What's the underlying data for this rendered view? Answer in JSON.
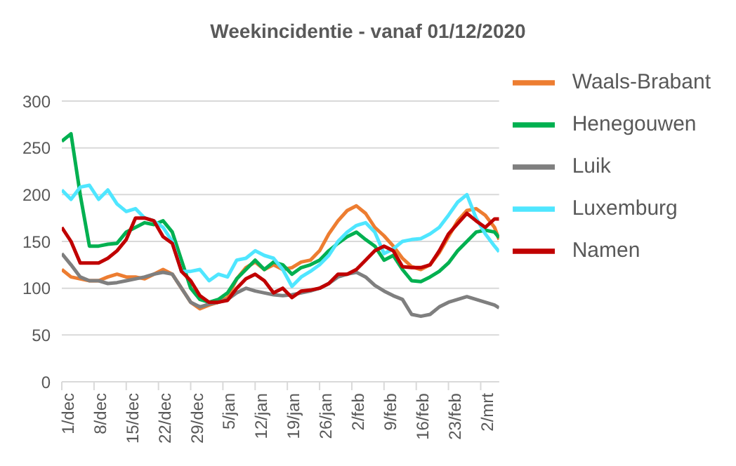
{
  "chart_data": {
    "type": "line",
    "title": "Weekincidentie - vanaf 01/12/2020",
    "x": [
      "2020-12-01",
      "2020-12-03",
      "2020-12-05",
      "2020-12-07",
      "2020-12-09",
      "2020-12-11",
      "2020-12-13",
      "2020-12-15",
      "2020-12-17",
      "2020-12-19",
      "2020-12-21",
      "2020-12-23",
      "2020-12-25",
      "2020-12-27",
      "2020-12-29",
      "2020-12-31",
      "2021-01-02",
      "2021-01-04",
      "2021-01-06",
      "2021-01-08",
      "2021-01-10",
      "2021-01-12",
      "2021-01-14",
      "2021-01-16",
      "2021-01-18",
      "2021-01-20",
      "2021-01-22",
      "2021-01-24",
      "2021-01-26",
      "2021-01-28",
      "2021-01-30",
      "2021-02-01",
      "2021-02-03",
      "2021-02-05",
      "2021-02-07",
      "2021-02-09",
      "2021-02-11",
      "2021-02-13",
      "2021-02-15",
      "2021-02-17",
      "2021-02-19",
      "2021-02-21",
      "2021-02-23",
      "2021-02-25",
      "2021-02-27",
      "2021-03-01",
      "2021-03-03",
      "2021-03-05",
      "2021-03-06"
    ],
    "series": [
      {
        "name": "Waals-Brabant",
        "color": "#ed7d31",
        "values": [
          120,
          112,
          110,
          108,
          108,
          112,
          115,
          112,
          112,
          110,
          115,
          120,
          115,
          100,
          85,
          78,
          82,
          85,
          90,
          110,
          122,
          128,
          120,
          125,
          120,
          122,
          128,
          130,
          140,
          158,
          172,
          183,
          188,
          180,
          165,
          156,
          145,
          132,
          123,
          120,
          125,
          138,
          155,
          172,
          183,
          185,
          178,
          165,
          152
        ]
      },
      {
        "name": "Henegouwen",
        "color": "#00b050",
        "values": [
          257,
          265,
          200,
          145,
          145,
          147,
          148,
          160,
          165,
          170,
          168,
          172,
          160,
          130,
          100,
          88,
          85,
          88,
          95,
          110,
          120,
          130,
          120,
          128,
          125,
          115,
          122,
          125,
          130,
          140,
          148,
          155,
          160,
          152,
          145,
          130,
          135,
          120,
          108,
          107,
          112,
          118,
          127,
          140,
          150,
          160,
          162,
          160,
          154
        ]
      },
      {
        "name": "Luik",
        "color": "#7f7f7f",
        "values": [
          137,
          125,
          112,
          108,
          108,
          105,
          106,
          108,
          110,
          112,
          115,
          117,
          115,
          100,
          85,
          80,
          83,
          85,
          88,
          95,
          100,
          97,
          95,
          93,
          92,
          93,
          95,
          97,
          100,
          105,
          112,
          115,
          117,
          112,
          103,
          97,
          92,
          88,
          72,
          70,
          72,
          80,
          85,
          88,
          91,
          88,
          85,
          82,
          79
        ]
      },
      {
        "name": "Luxemburg",
        "color": "#4fe6ff",
        "values": [
          205,
          195,
          208,
          210,
          195,
          205,
          190,
          182,
          185,
          175,
          172,
          165,
          150,
          118,
          118,
          120,
          108,
          115,
          112,
          130,
          132,
          140,
          135,
          132,
          120,
          102,
          112,
          118,
          125,
          135,
          150,
          160,
          167,
          170,
          160,
          137,
          142,
          150,
          152,
          153,
          158,
          165,
          178,
          192,
          200,
          175,
          158,
          145,
          139
        ]
      },
      {
        "name": "Namen",
        "color": "#c00000",
        "values": [
          165,
          150,
          127,
          127,
          127,
          132,
          140,
          152,
          175,
          175,
          172,
          155,
          148,
          118,
          108,
          92,
          85,
          85,
          87,
          100,
          110,
          115,
          108,
          95,
          100,
          90,
          97,
          98,
          100,
          105,
          115,
          115,
          120,
          130,
          140,
          145,
          140,
          123,
          122,
          122,
          125,
          140,
          158,
          169,
          180,
          172,
          165,
          174,
          174
        ]
      }
    ],
    "xlim": [
      "2020-12-01",
      "2021-03-06"
    ],
    "xticks": [
      {
        "value": "2020-12-01",
        "label": "1/dec"
      },
      {
        "value": "2020-12-08",
        "label": "8/dec"
      },
      {
        "value": "2020-12-15",
        "label": "15/dec"
      },
      {
        "value": "2020-12-22",
        "label": "22/dec"
      },
      {
        "value": "2020-12-29",
        "label": "29/dec"
      },
      {
        "value": "2021-01-05",
        "label": "5/jan"
      },
      {
        "value": "2021-01-12",
        "label": "12/jan"
      },
      {
        "value": "2021-01-19",
        "label": "19/jan"
      },
      {
        "value": "2021-01-26",
        "label": "26/jan"
      },
      {
        "value": "2021-02-02",
        "label": "2/feb"
      },
      {
        "value": "2021-02-09",
        "label": "9/feb"
      },
      {
        "value": "2021-02-16",
        "label": "16/feb"
      },
      {
        "value": "2021-02-23",
        "label": "23/feb"
      },
      {
        "value": "2021-03-02",
        "label": "2/mrt"
      }
    ],
    "ylim": [
      0,
      300
    ],
    "yticks": [
      0,
      50,
      100,
      150,
      200,
      250,
      300
    ],
    "grid": "y",
    "legend": "top right",
    "marker": "none",
    "line_style": "solid"
  }
}
